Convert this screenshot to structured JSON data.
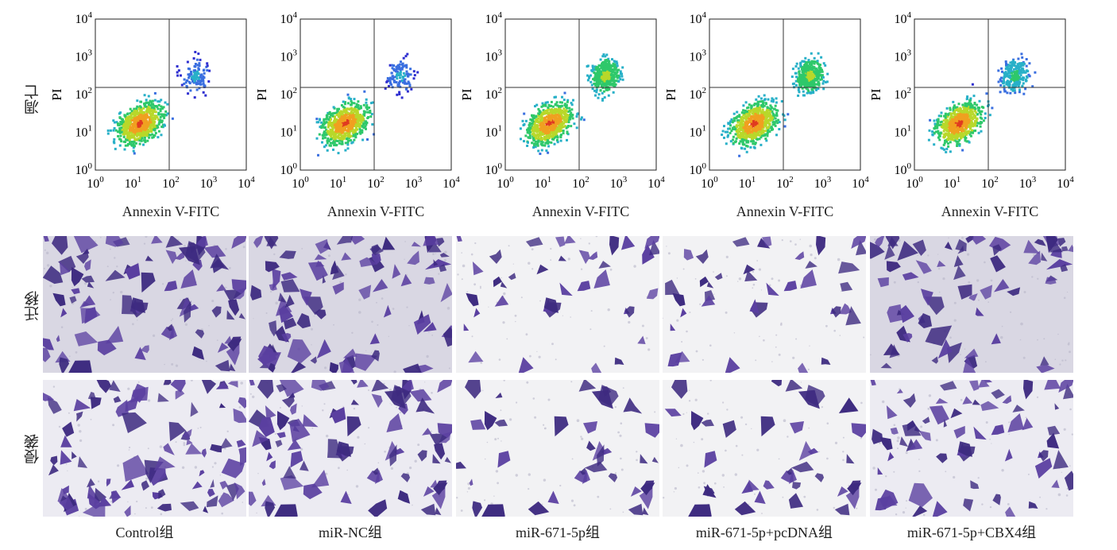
{
  "row_labels": {
    "apoptosis": "凋亡",
    "migration": "迁移",
    "invasion": "侵袭"
  },
  "flow": {
    "y_axis_label": "PI",
    "x_axis_label": "Annexin V-FITC",
    "tick_base": "10",
    "tick_exponents": [
      "0",
      "1",
      "2",
      "3",
      "4"
    ]
  },
  "groups": [
    {
      "label": "Control组",
      "apoptotic_level": 1,
      "cell_density": 1.0
    },
    {
      "label": "miR-NC组",
      "apoptotic_level": 1,
      "cell_density": 1.0
    },
    {
      "label": "miR-671-5p组",
      "apoptotic_level": 3,
      "cell_density": 0.35
    },
    {
      "label": "miR-671-5p+pcDNA组",
      "apoptotic_level": 3,
      "cell_density": 0.35
    },
    {
      "label": "miR-671-5p+CBX4组",
      "apoptotic_level": 2,
      "cell_density": 0.75
    }
  ],
  "colors": {
    "stain": "#5a3fa0",
    "stain_dark": "#3d2a80",
    "migration_bg": "#d9d7e3",
    "invasion_bg": "#ecebf2",
    "sparse_bg": "#f2f2f4"
  }
}
